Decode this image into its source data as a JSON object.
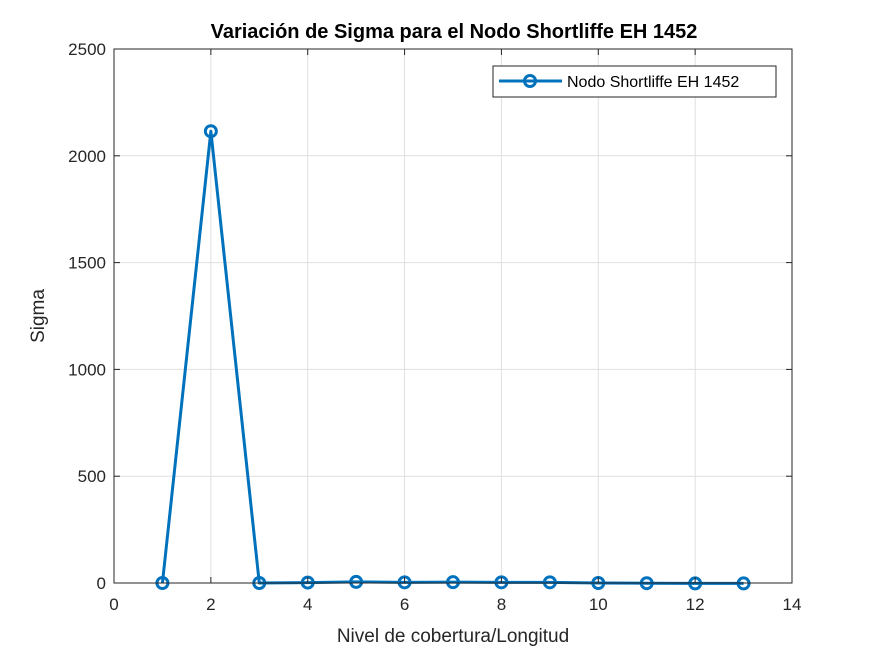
{
  "chart_data": {
    "type": "line",
    "title": "Variación de Sigma para el Nodo Shortliffe EH 1452",
    "xlabel": "Nivel de cobertura/Longitud",
    "ylabel": "Sigma",
    "xlim": [
      0,
      14
    ],
    "ylim": [
      0,
      2500
    ],
    "xticks": [
      0,
      2,
      4,
      6,
      8,
      10,
      12,
      14
    ],
    "yticks": [
      0,
      500,
      1000,
      1500,
      2000,
      2500
    ],
    "grid": true,
    "legend_position": "top-right",
    "series": [
      {
        "name": "Nodo Shortliffe EH 1452",
        "color": "#0072bd",
        "marker": "circle",
        "x": [
          1,
          2,
          3,
          4,
          5,
          6,
          7,
          8,
          9,
          10,
          11,
          12,
          13
        ],
        "y": [
          0,
          2115,
          0,
          2,
          5,
          3,
          4,
          3,
          3,
          0,
          -1,
          -2,
          -2
        ]
      }
    ]
  }
}
